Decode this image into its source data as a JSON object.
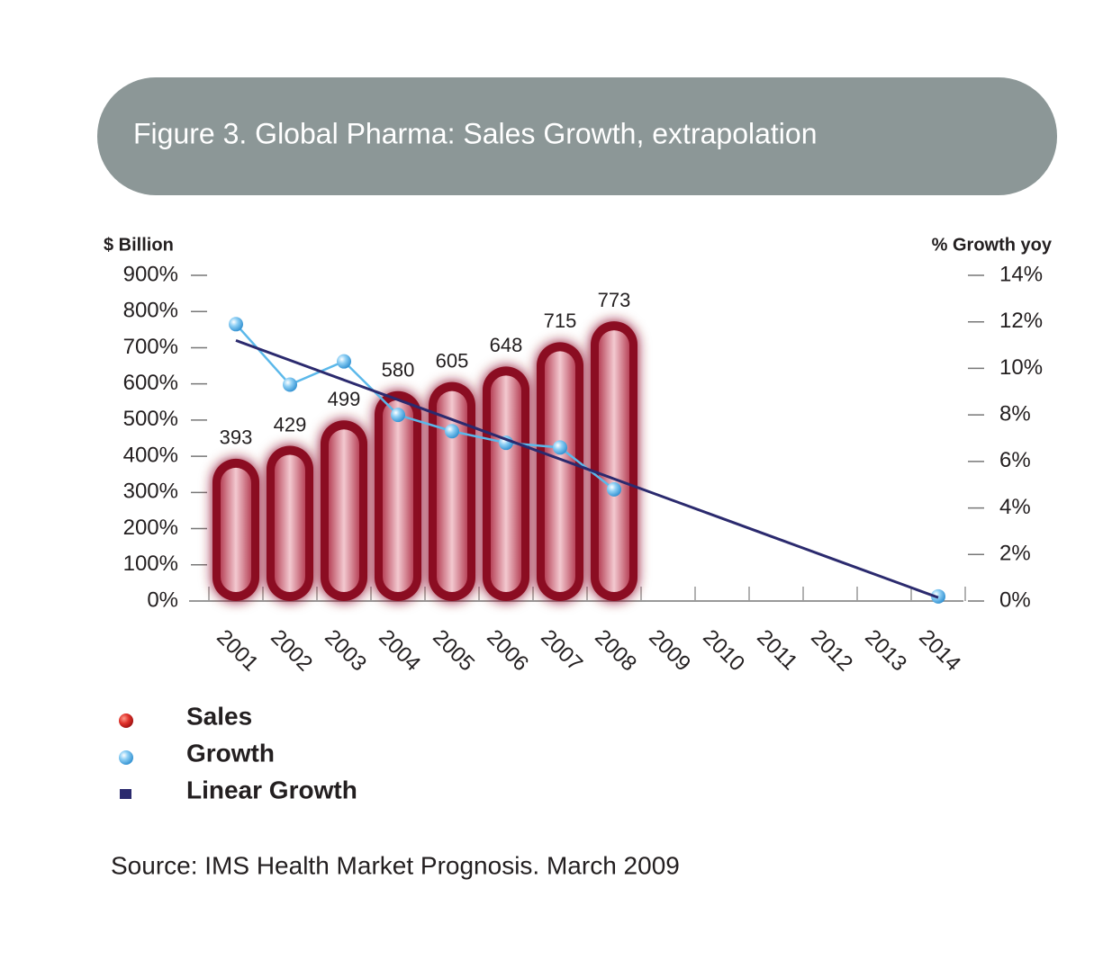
{
  "chart_data": {
    "type": "bar",
    "title": "Figure 3. Global Pharma: Sales Growth, extrapolation",
    "y_label": "$ Billion",
    "y2_label": "% Growth yoy",
    "categories": [
      "2001",
      "2002",
      "2003",
      "2004",
      "2005",
      "2006",
      "2007",
      "2008",
      "2009",
      "2010",
      "2011",
      "2012",
      "2013",
      "2014"
    ],
    "series": [
      {
        "name": "Sales",
        "color": "#8b1020",
        "type": "bar",
        "values": [
          393,
          429,
          499,
          580,
          605,
          648,
          715,
          773,
          null,
          null,
          null,
          null,
          null,
          null
        ]
      },
      {
        "name": "Growth",
        "color": "#5bb8ea",
        "type": "line",
        "axis": "y2",
        "values": [
          11.9,
          9.3,
          10.3,
          8.0,
          7.3,
          6.8,
          6.6,
          4.8,
          null,
          null,
          null,
          null,
          null,
          0.2
        ]
      },
      {
        "name": "Linear Growth",
        "color": "#2b2a6e",
        "type": "line",
        "axis": "y2",
        "values": [
          11.2,
          10.35,
          9.5,
          8.65,
          7.8,
          6.95,
          6.1,
          5.25,
          4.4,
          3.55,
          2.7,
          1.85,
          1.0,
          0.15
        ]
      }
    ],
    "ylim": [
      0,
      900
    ],
    "yticks": [
      {
        "value": 0,
        "label": "0%"
      },
      {
        "value": 100,
        "label": "100%"
      },
      {
        "value": 200,
        "label": "200%"
      },
      {
        "value": 300,
        "label": "300%"
      },
      {
        "value": 400,
        "label": "400%"
      },
      {
        "value": 500,
        "label": "500%"
      },
      {
        "value": 600,
        "label": "600%"
      },
      {
        "value": 700,
        "label": "700%"
      },
      {
        "value": 800,
        "label": "800%"
      },
      {
        "value": 900,
        "label": "900%"
      }
    ],
    "y2lim": [
      0,
      14
    ],
    "y2ticks": [
      {
        "value": 0,
        "label": "0%"
      },
      {
        "value": 2,
        "label": "2%"
      },
      {
        "value": 4,
        "label": "4%"
      },
      {
        "value": 6,
        "label": "6%"
      },
      {
        "value": 8,
        "label": "8%"
      },
      {
        "value": 10,
        "label": "10%"
      },
      {
        "value": 12,
        "label": "12%"
      },
      {
        "value": 14,
        "label": "14%"
      }
    ],
    "source": "Source: IMS Health Market Prognosis. March 2009"
  }
}
